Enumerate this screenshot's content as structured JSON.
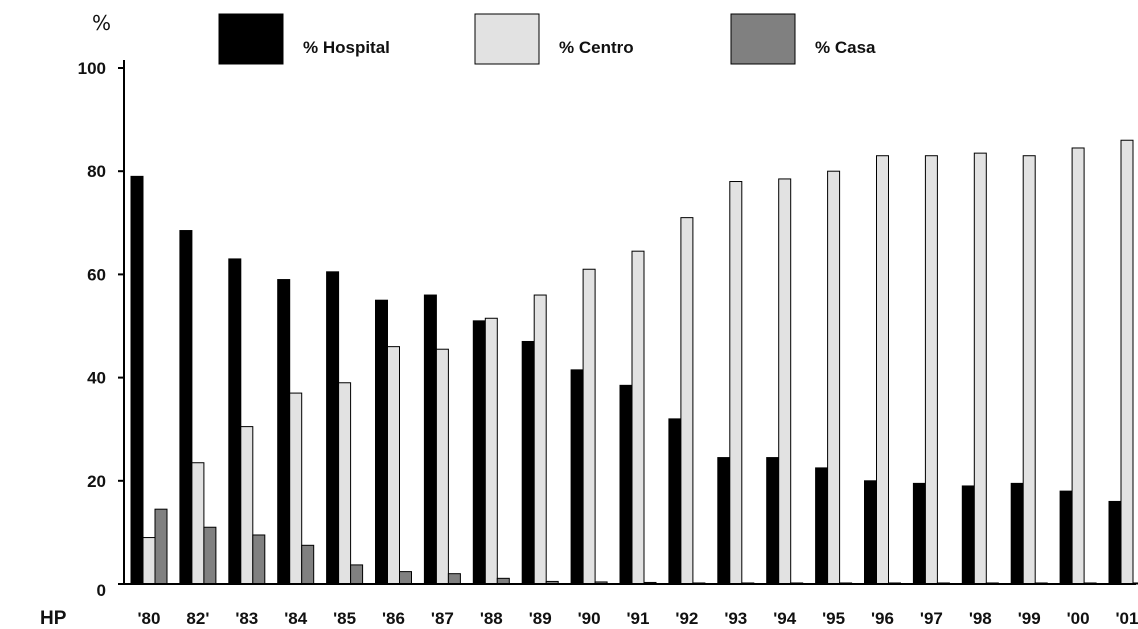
{
  "chart_data": {
    "type": "bar",
    "y_unit_label": "%",
    "corner_label": "HP",
    "categories": [
      "'80",
      "82'",
      "'83",
      "'84",
      "'85",
      "'86",
      "'87",
      "'88",
      "'89",
      "'90",
      "'91",
      "'92",
      "'93",
      "'94",
      "'95",
      "'96",
      "'97",
      "'98",
      "'99",
      "'00",
      "'01"
    ],
    "series": [
      {
        "name": "% Hospital",
        "color": "#000000",
        "values": [
          79,
          68.5,
          63,
          59,
          60.5,
          55,
          56,
          51,
          47,
          41.5,
          38.5,
          32,
          24.5,
          24.5,
          22.5,
          20,
          19.5,
          19,
          19.5,
          18,
          16
        ]
      },
      {
        "name": "% Centro",
        "color": "#e2e2e2",
        "values": [
          9,
          23.5,
          30.5,
          37,
          39,
          46,
          45.5,
          51.5,
          56,
          61,
          64.5,
          71,
          78,
          78.5,
          80,
          83,
          83,
          83.5,
          83,
          84.5,
          86
        ]
      },
      {
        "name": "% Casa",
        "color": "#808080",
        "values": [
          14.5,
          11,
          9.5,
          7.5,
          3.7,
          2.4,
          2,
          1.1,
          0.5,
          0.4,
          0.3,
          0.2,
          0.2,
          0.2,
          0.2,
          0.2,
          0.2,
          0.2,
          0.2,
          0.2,
          0.2
        ]
      }
    ],
    "y_ticks": [
      0,
      20,
      40,
      60,
      80,
      100
    ],
    "ylim": [
      0,
      100
    ],
    "grid": false,
    "legend_position": "top"
  }
}
